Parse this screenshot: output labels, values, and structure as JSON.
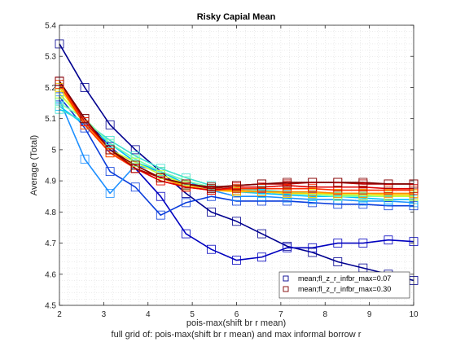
{
  "chart_data": {
    "type": "line",
    "title": "Risky Capial Mean",
    "xlabel": "pois-max(shift br r mean)",
    "xlabel2": "full grid of: pois-max(shift br r mean) and max informal borrow r",
    "ylabel": "Average (Total)",
    "xlim": [
      2,
      10
    ],
    "ylim": [
      4.5,
      5.4
    ],
    "xticks": [
      "2",
      "3",
      "4",
      "5",
      "6",
      "7",
      "8",
      "9",
      "10"
    ],
    "yticks": [
      "4.5",
      "4.6",
      "4.7",
      "4.8",
      "4.9",
      "5",
      "5.1",
      "5.2",
      "5.3",
      "5.4"
    ],
    "grid": "minor-dotted",
    "legend_position": "bottom-right",
    "x": [
      2.0,
      2.5714,
      3.1429,
      3.7143,
      4.2857,
      4.8571,
      5.4286,
      6.0,
      6.5714,
      7.1429,
      7.7143,
      8.2857,
      8.8571,
      9.4286,
      10.0
    ],
    "series": [
      {
        "name": "mean;fl_z_r_infbr_max=0.07",
        "color": "#00008f",
        "marker": "square",
        "values": [
          5.34,
          5.2,
          5.08,
          5.0,
          4.93,
          4.86,
          4.8,
          4.77,
          4.73,
          4.69,
          4.67,
          4.64,
          4.62,
          4.6,
          4.58
        ]
      },
      {
        "color": "#0000bf",
        "marker": "square",
        "values": [
          5.22,
          5.1,
          5.01,
          4.94,
          4.85,
          4.73,
          4.68,
          4.645,
          4.655,
          4.685,
          4.685,
          4.7,
          4.7,
          4.71,
          4.705
        ]
      },
      {
        "color": "#0a3ddb",
        "marker": "square",
        "values": [
          5.17,
          5.07,
          4.93,
          4.88,
          4.79,
          4.83,
          4.85,
          4.835,
          4.835,
          4.835,
          4.83,
          4.825,
          4.825,
          4.82,
          4.82
        ]
      },
      {
        "color": "#1e90ff",
        "marker": "square",
        "values": [
          5.16,
          4.97,
          4.86,
          4.95,
          4.93,
          4.9,
          4.87,
          4.85,
          4.85,
          4.845,
          4.84,
          4.84,
          4.835,
          4.835,
          4.83
        ]
      },
      {
        "color": "#00bfff",
        "marker": "square",
        "values": [
          5.14,
          5.08,
          5.02,
          4.96,
          4.93,
          4.89,
          4.875,
          4.865,
          4.86,
          4.855,
          4.85,
          4.85,
          4.845,
          4.84,
          4.84
        ]
      },
      {
        "color": "#40e0d0",
        "marker": "square",
        "values": [
          5.13,
          5.09,
          5.03,
          4.98,
          4.94,
          4.91,
          4.885,
          4.875,
          4.87,
          4.865,
          4.86,
          4.855,
          4.85,
          4.85,
          4.85
        ]
      },
      {
        "color": "#7fffaa",
        "marker": "square",
        "values": [
          5.15,
          5.1,
          5.02,
          4.97,
          4.93,
          4.9,
          4.88,
          4.87,
          4.865,
          4.86,
          4.855,
          4.85,
          4.85,
          4.85,
          4.85
        ]
      },
      {
        "color": "#c8ff37",
        "marker": "square",
        "values": [
          5.18,
          5.09,
          5.0,
          4.96,
          4.92,
          4.89,
          4.875,
          4.87,
          4.865,
          4.86,
          4.86,
          4.855,
          4.855,
          4.85,
          4.85
        ]
      },
      {
        "color": "#ffd000",
        "marker": "square",
        "values": [
          5.2,
          5.08,
          4.99,
          4.95,
          4.91,
          4.885,
          4.87,
          4.865,
          4.865,
          4.86,
          4.86,
          4.86,
          4.86,
          4.855,
          4.855
        ]
      },
      {
        "color": "#ff8c00",
        "marker": "square",
        "values": [
          5.21,
          5.09,
          4.99,
          4.94,
          4.91,
          4.88,
          4.87,
          4.87,
          4.865,
          4.865,
          4.865,
          4.86,
          4.86,
          4.86,
          4.86
        ]
      },
      {
        "color": "#ff3000",
        "marker": "square",
        "values": [
          5.21,
          5.08,
          4.99,
          4.94,
          4.9,
          4.88,
          4.87,
          4.875,
          4.875,
          4.875,
          4.875,
          4.87,
          4.87,
          4.87,
          4.87
        ]
      },
      {
        "color": "#df0000",
        "marker": "square",
        "values": [
          5.22,
          5.09,
          5.0,
          4.94,
          4.9,
          4.88,
          4.87,
          4.88,
          4.88,
          4.885,
          4.88,
          4.88,
          4.88,
          4.875,
          4.875
        ]
      },
      {
        "color": "#af0000",
        "marker": "square",
        "values": [
          5.22,
          5.1,
          5.0,
          4.94,
          4.91,
          4.89,
          4.875,
          4.885,
          4.89,
          4.89,
          4.895,
          4.895,
          4.89,
          4.89,
          4.89
        ]
      },
      {
        "name": "mean;fl_z_r_infbr_max=0.30",
        "color": "#7f0000",
        "marker": "square",
        "values": [
          5.22,
          5.1,
          5.0,
          4.95,
          4.91,
          4.89,
          4.88,
          4.885,
          4.89,
          4.895,
          4.895,
          4.895,
          4.895,
          4.89,
          4.89
        ]
      }
    ]
  }
}
